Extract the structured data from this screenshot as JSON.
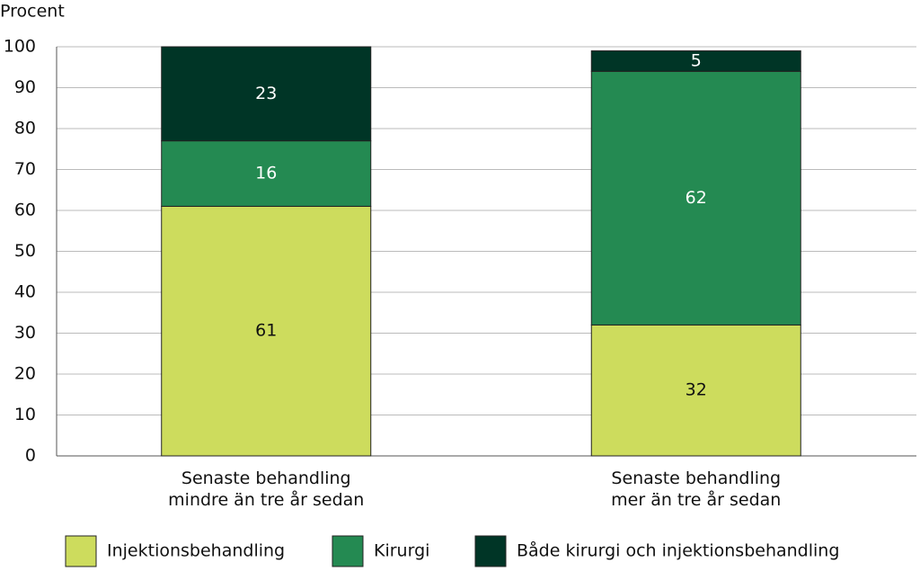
{
  "chart_data": {
    "type": "stacked_bar",
    "y_label": "Procent",
    "categories": [
      "Senaste behandling\nmindre än tre år sedan",
      "Senaste behandling\nmer än tre år sedan"
    ],
    "series": [
      {
        "name": "Injektionsbehandling",
        "color": "#cddc5d",
        "values": [
          61,
          32
        ]
      },
      {
        "name": "Kirurgi",
        "color": "#248a52",
        "values": [
          16,
          62
        ]
      },
      {
        "name": "Både kirurgi och injektionsbehandling",
        "color": "#003526",
        "values": [
          23,
          5
        ]
      }
    ],
    "ylim": [
      0,
      100
    ],
    "yticks": [
      0,
      10,
      20,
      30,
      40,
      50,
      60,
      70,
      80,
      90,
      100
    ],
    "grid": true
  }
}
